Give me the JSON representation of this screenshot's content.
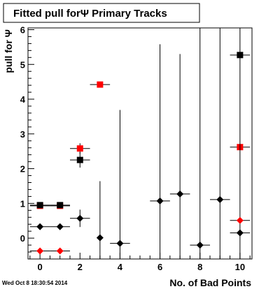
{
  "chart_data": {
    "type": "scatter",
    "title": "Fitted pull forΨ  Primary Tracks",
    "xlabel": "No. of Bad Points",
    "ylabel": "pull for Ψ",
    "xlim": [
      -0.6,
      10.6
    ],
    "ylim": [
      -0.6,
      6.05
    ],
    "xticks": [
      0,
      2,
      4,
      6,
      8,
      10
    ],
    "yticks": [
      0,
      1,
      2,
      3,
      4,
      5,
      6
    ],
    "grid": false,
    "timestamp": "Wed Oct  8 18:30:54 2014",
    "series": [
      {
        "marker": "square",
        "color": "#ff0000",
        "points": [
          {
            "x": 0,
            "y": 0.93,
            "xerr": 0.5,
            "yerr": 0.05
          },
          {
            "x": 1,
            "y": 0.93,
            "xerr": 0.5,
            "yerr": 0.05
          },
          {
            "x": 2,
            "y": 2.58,
            "xerr": 0.5,
            "yerr": 0.15
          },
          {
            "x": 3,
            "y": 4.42,
            "xerr": 0.5,
            "yerr": 0.0
          },
          {
            "x": 10,
            "y": 2.62,
            "xerr": 0.5,
            "yerr": 0.0
          }
        ]
      },
      {
        "marker": "square",
        "color": "#000000",
        "points": [
          {
            "x": 0,
            "y": 0.95,
            "xerr": 0.5,
            "yerr": 0.06
          },
          {
            "x": 1,
            "y": 0.95,
            "xerr": 0.5,
            "yerr": 0.06
          },
          {
            "x": 2,
            "y": 2.25,
            "xerr": 0.5,
            "yerr": 0.22
          },
          {
            "x": 10,
            "y": 5.27,
            "xerr": 0.5,
            "yerr": 0.0
          }
        ]
      },
      {
        "marker": "diamond",
        "color": "#000000",
        "points": [
          {
            "x": 0,
            "y": 0.33,
            "xerr": 0.5,
            "yerr": 0.0
          },
          {
            "x": 1,
            "y": 0.33,
            "xerr": 0.5,
            "yerr": 0.0
          },
          {
            "x": 2,
            "y": 0.57,
            "xerr": 0.5,
            "yerr": 0.25
          },
          {
            "x": 3,
            "y": 0.01,
            "xerr": 0.0,
            "yerr": 1.63
          },
          {
            "x": 4,
            "y": -0.15,
            "xerr": 0.5,
            "yerr": 3.84
          },
          {
            "x": 6,
            "y": 1.07,
            "xerr": 0.5,
            "yerr": 4.51
          },
          {
            "x": 7,
            "y": 1.27,
            "xerr": 0.5,
            "yerr": 4.03
          },
          {
            "x": 8,
            "y": -0.2,
            "xerr": 0.5,
            "yerr": 6.5
          },
          {
            "x": 9,
            "y": 1.11,
            "xerr": 0.5,
            "yerr": 5.1
          },
          {
            "x": 10,
            "y": 0.15,
            "xerr": 0.5,
            "yerr": 6.5
          }
        ]
      },
      {
        "marker": "diamond",
        "color": "#ff0000",
        "points": [
          {
            "x": 0,
            "y": -0.37,
            "xerr": 0.5,
            "yerr": 0.0
          },
          {
            "x": 1,
            "y": -0.37,
            "xerr": 0.5,
            "yerr": 0.0
          },
          {
            "x": 10,
            "y": 0.51,
            "xerr": 0.5,
            "yerr": 0.0
          }
        ]
      }
    ]
  }
}
